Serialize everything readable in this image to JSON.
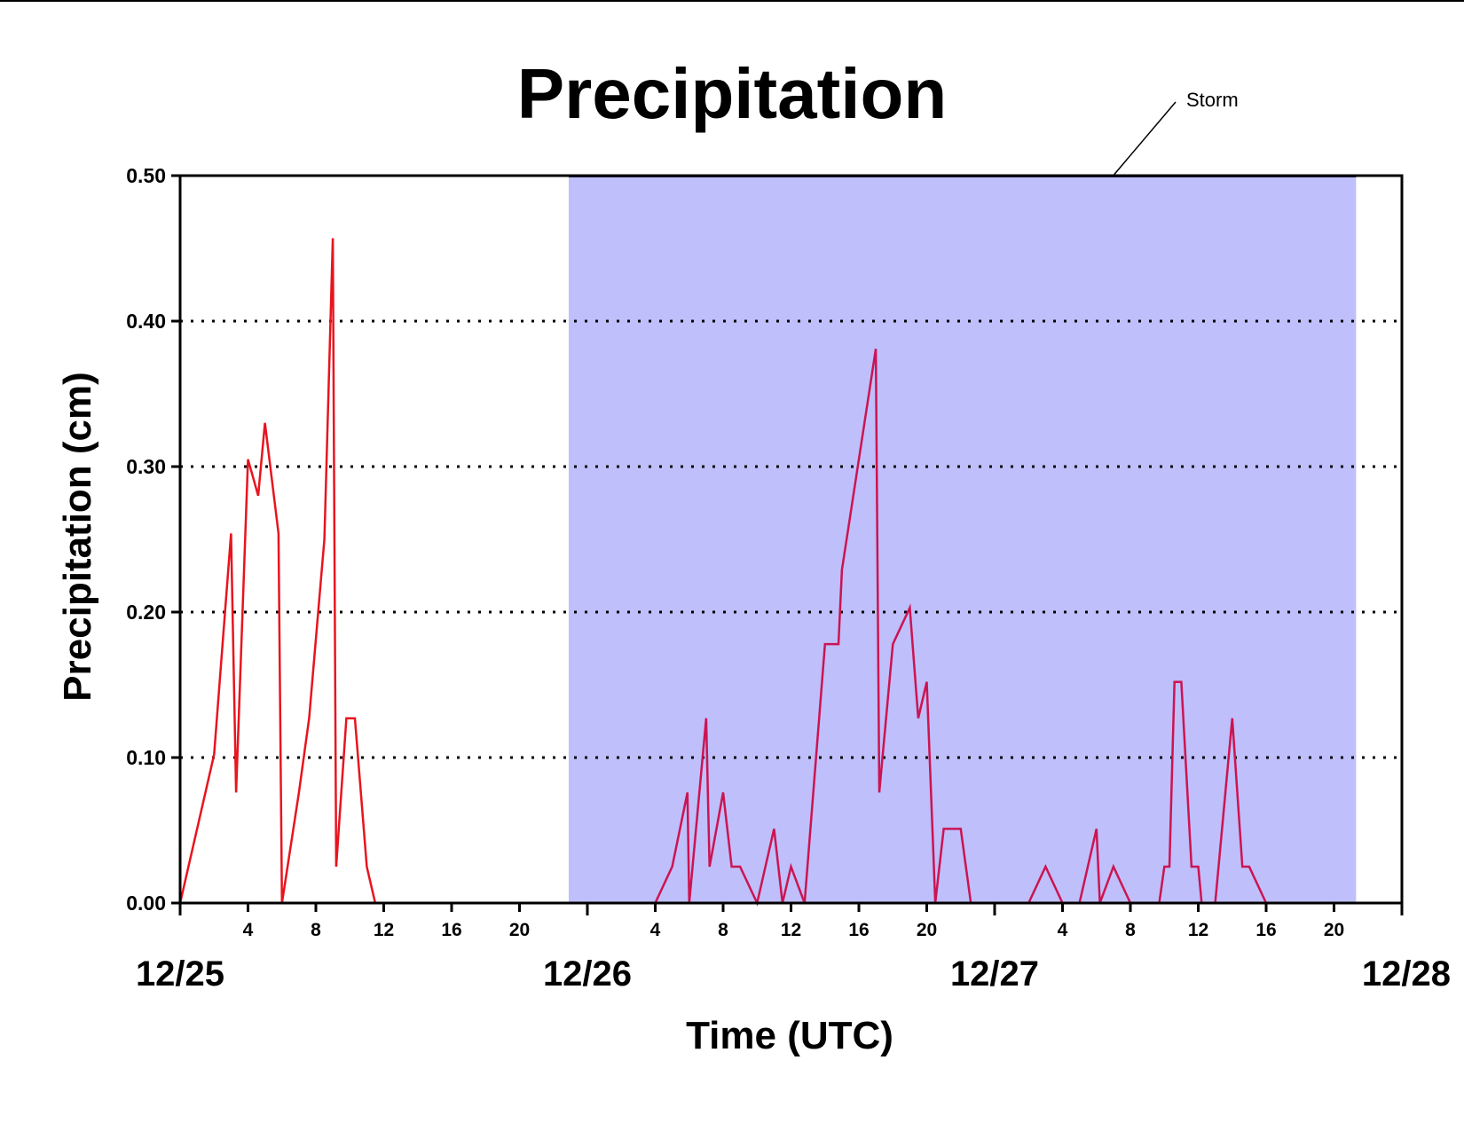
{
  "chart_data": {
    "type": "line",
    "title": "Precipitation",
    "xlabel": "Time (UTC)",
    "ylabel": "Precipitation (cm)",
    "ylim": [
      0,
      0.5
    ],
    "yticks": [
      "0.00",
      "0.10",
      "0.20",
      "0.30",
      "0.40",
      "0.50"
    ],
    "xlim": [
      0,
      72
    ],
    "hour_ticks": [
      {
        "x": 4,
        "label": "4"
      },
      {
        "x": 8,
        "label": "8"
      },
      {
        "x": 12,
        "label": "12"
      },
      {
        "x": 16,
        "label": "16"
      },
      {
        "x": 20,
        "label": "20"
      },
      {
        "x": 28,
        "label": "4"
      },
      {
        "x": 32,
        "label": "8"
      },
      {
        "x": 36,
        "label": "12"
      },
      {
        "x": 40,
        "label": "16"
      },
      {
        "x": 44,
        "label": "20"
      },
      {
        "x": 52,
        "label": "4"
      },
      {
        "x": 56,
        "label": "8"
      },
      {
        "x": 60,
        "label": "12"
      },
      {
        "x": 64,
        "label": "16"
      },
      {
        "x": 68,
        "label": "20"
      }
    ],
    "date_labels": [
      {
        "x": 0,
        "label": "12/25"
      },
      {
        "x": 24,
        "label": "12/26"
      },
      {
        "x": 48,
        "label": "12/27"
      },
      {
        "x": 72,
        "label": "12/28"
      }
    ],
    "grid": "horizontal dotted",
    "storm_period": {
      "start": 22.9,
      "end": 69.3,
      "label": "Storm",
      "color": "#bfbffb"
    },
    "series": [
      {
        "color": "#e8141e",
        "points": [
          [
            0,
            0
          ],
          [
            2,
            0.102
          ],
          [
            3,
            0.254
          ],
          [
            3.3,
            0.076
          ],
          [
            4,
            0.305
          ],
          [
            4.6,
            0.28
          ],
          [
            5,
            0.33
          ],
          [
            5.8,
            0.254
          ],
          [
            6,
            0
          ],
          [
            7,
            0.076
          ],
          [
            7.6,
            0.127
          ],
          [
            8.5,
            0.25
          ],
          [
            9,
            0.457
          ],
          [
            9.2,
            0.025
          ],
          [
            9.8,
            0.127
          ],
          [
            10.3,
            0.127
          ],
          [
            11,
            0.025
          ],
          [
            11.5,
            0
          ],
          [
            22.9,
            0
          ]
        ]
      },
      {
        "color": "#cc1452",
        "points": [
          [
            22.9,
            0
          ],
          [
            28,
            0
          ],
          [
            29,
            0.025
          ],
          [
            29.9,
            0.076
          ],
          [
            30,
            0
          ],
          [
            31,
            0.127
          ],
          [
            31.2,
            0.025
          ],
          [
            32,
            0.076
          ],
          [
            32.5,
            0.025
          ],
          [
            33,
            0.025
          ],
          [
            34,
            0
          ],
          [
            35,
            0.051
          ],
          [
            35.5,
            0
          ],
          [
            36,
            0.025
          ],
          [
            36.8,
            0
          ],
          [
            38,
            0.178
          ],
          [
            38.8,
            0.178
          ],
          [
            39,
            0.229
          ],
          [
            40,
            0.305
          ],
          [
            41,
            0.381
          ],
          [
            41.2,
            0.076
          ],
          [
            42,
            0.178
          ],
          [
            43,
            0.203
          ],
          [
            43.5,
            0.127
          ],
          [
            44,
            0.152
          ],
          [
            44.5,
            0
          ],
          [
            45,
            0.051
          ],
          [
            46,
            0.051
          ],
          [
            46.6,
            0
          ],
          [
            50,
            0
          ],
          [
            51,
            0.025
          ],
          [
            52,
            0
          ],
          [
            53,
            0
          ],
          [
            54,
            0.051
          ],
          [
            54.2,
            0
          ],
          [
            55,
            0.025
          ],
          [
            56,
            0
          ],
          [
            57.7,
            0
          ],
          [
            58,
            0.025
          ],
          [
            58.3,
            0.025
          ],
          [
            58.6,
            0.152
          ],
          [
            59,
            0.152
          ],
          [
            59.6,
            0.025
          ],
          [
            60,
            0.025
          ],
          [
            60.2,
            0
          ],
          [
            61,
            0
          ],
          [
            62,
            0.127
          ],
          [
            62.6,
            0.025
          ],
          [
            63,
            0.025
          ],
          [
            64,
            0
          ],
          [
            69.3,
            0
          ]
        ]
      },
      {
        "color": "#e8141e",
        "points": [
          [
            69.3,
            0
          ],
          [
            72,
            0
          ]
        ]
      }
    ]
  }
}
